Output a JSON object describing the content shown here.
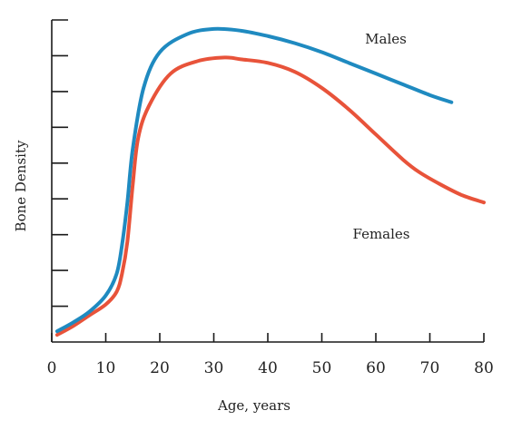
{
  "chart_data": {
    "type": "line",
    "title": "",
    "xlabel": "Age, years",
    "ylabel": "Bone Density",
    "xlim": [
      0,
      80
    ],
    "ylim": [
      0,
      9
    ],
    "x_ticks": [
      0,
      10,
      20,
      30,
      40,
      50,
      60,
      70,
      80
    ],
    "y_ticks_labeled": false,
    "y_tick_count": 9,
    "grid": false,
    "series": [
      {
        "name": "Males",
        "color": "#1f8ac0",
        "x": [
          1,
          4,
          7,
          10,
          12,
          13,
          14,
          15,
          17,
          20,
          25,
          30,
          35,
          40,
          45,
          50,
          55,
          60,
          65,
          70,
          74
        ],
        "y": [
          0.3,
          0.55,
          0.85,
          1.3,
          1.9,
          2.7,
          3.9,
          5.4,
          7.1,
          8.1,
          8.6,
          8.75,
          8.7,
          8.55,
          8.35,
          8.1,
          7.8,
          7.5,
          7.2,
          6.9,
          6.7
        ]
      },
      {
        "name": "Females",
        "color": "#e8533a",
        "x": [
          1,
          4,
          7,
          10,
          12,
          13,
          14,
          15,
          16,
          18,
          22,
          27,
          32,
          35,
          40,
          45,
          50,
          55,
          60,
          65,
          68,
          72,
          76,
          80
        ],
        "y": [
          0.2,
          0.45,
          0.75,
          1.05,
          1.4,
          1.9,
          2.8,
          4.4,
          5.7,
          6.6,
          7.5,
          7.85,
          7.95,
          7.9,
          7.8,
          7.55,
          7.1,
          6.5,
          5.8,
          5.1,
          4.75,
          4.4,
          4.1,
          3.9
        ]
      }
    ]
  }
}
